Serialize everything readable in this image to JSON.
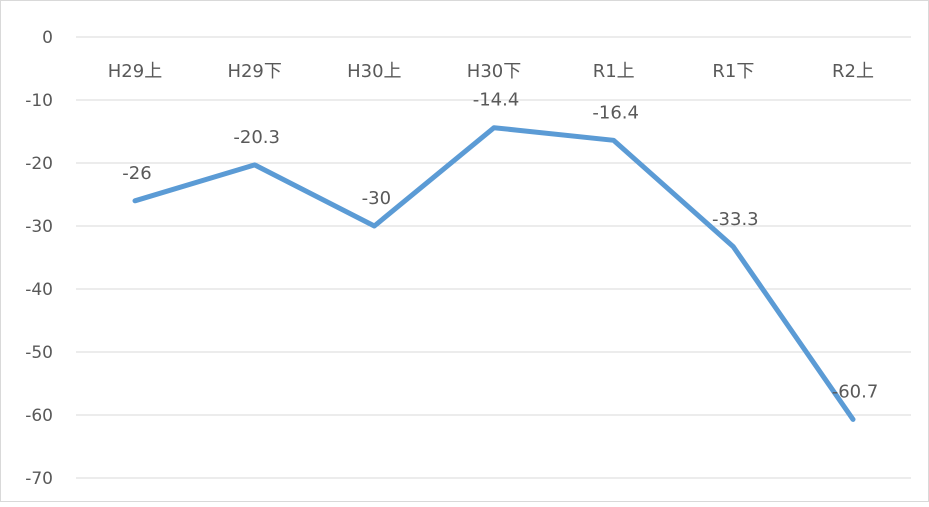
{
  "chart_data": {
    "type": "line",
    "categories": [
      "H29上",
      "H29下",
      "H30上",
      "H30下",
      "R1上",
      "R1下",
      "R2上"
    ],
    "series": [
      {
        "values": [
          -26,
          -20.3,
          -30,
          -14.4,
          -16.4,
          -33.3,
          -60.7
        ],
        "data_labels": [
          "-26",
          "-20.3",
          "-30",
          "-14.4",
          "-16.4",
          "-33.3",
          "-60.7"
        ]
      }
    ],
    "ylim": [
      -70,
      0
    ],
    "y_ticks": [
      0,
      -10,
      -20,
      -30,
      -40,
      -50,
      -60,
      -70
    ],
    "y_tick_labels": [
      "0",
      "-10",
      "-20",
      "-30",
      "-40",
      "-50",
      "-60",
      "-70"
    ],
    "x_axis_position": "top",
    "grid": true,
    "legend": "none",
    "title": "",
    "xlabel": "",
    "ylabel": "",
    "line_color": "#5b9bd5",
    "grid_color": "#d9d9d9",
    "text_color": "#595959"
  }
}
